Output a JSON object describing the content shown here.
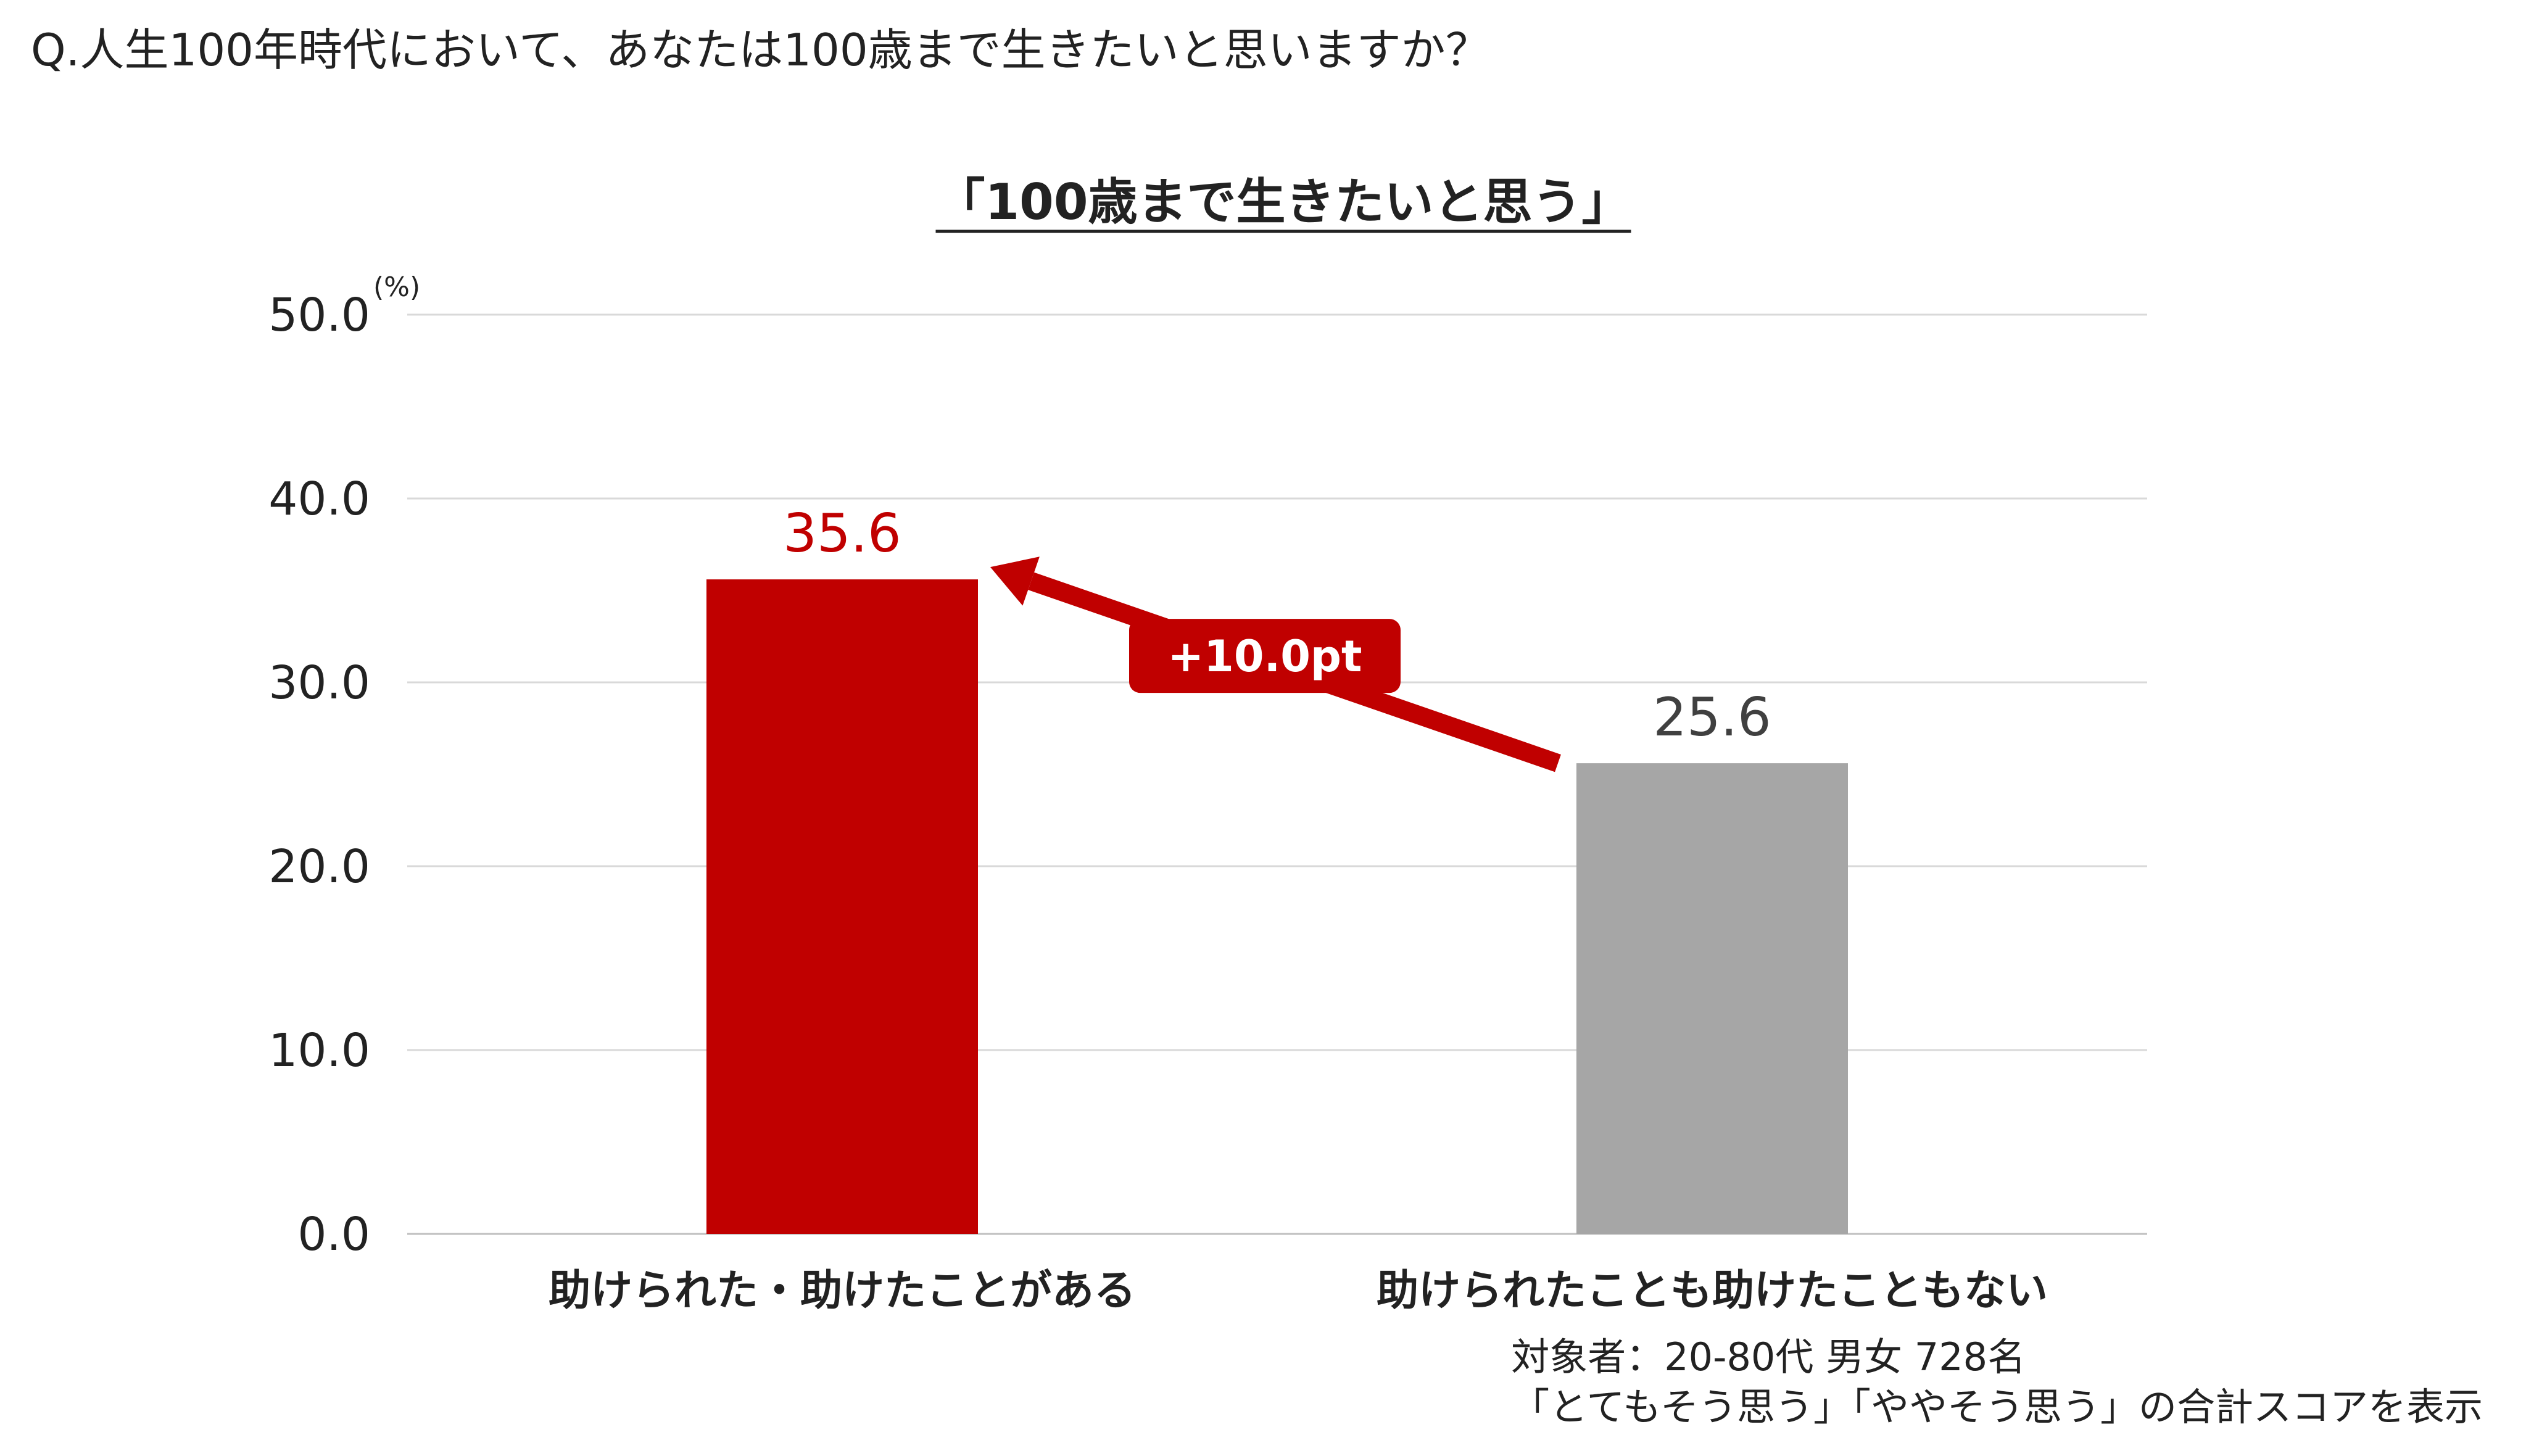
{
  "question": "Q.人生100年時代において、あなたは100歳まで生きたいと思いますか？",
  "footnote": {
    "line1": "対象者：20-80代 男女 728名",
    "line2": "「とてもそう思う」「ややそう思う」の合計スコアを表示"
  },
  "chart_data": {
    "type": "bar",
    "title": "「100歳まで生きたいと思う」",
    "unit": "(%)",
    "categories": [
      "助けられた・助けたことがある",
      "助けられたことも助けたこともない"
    ],
    "values": [
      35.6,
      25.6
    ],
    "value_labels": [
      "35.6",
      "25.6"
    ],
    "yticks": [
      "0.0",
      "10.0",
      "20.0",
      "30.0",
      "40.0",
      "50.0"
    ],
    "ylim": [
      0,
      50
    ],
    "grid": true,
    "colors": [
      "#c00000",
      "#a6a6a6"
    ],
    "label_colors": [
      "#c00000",
      "#404040"
    ],
    "annotation": {
      "text": "+10.0pt",
      "color": "#c00000"
    }
  }
}
